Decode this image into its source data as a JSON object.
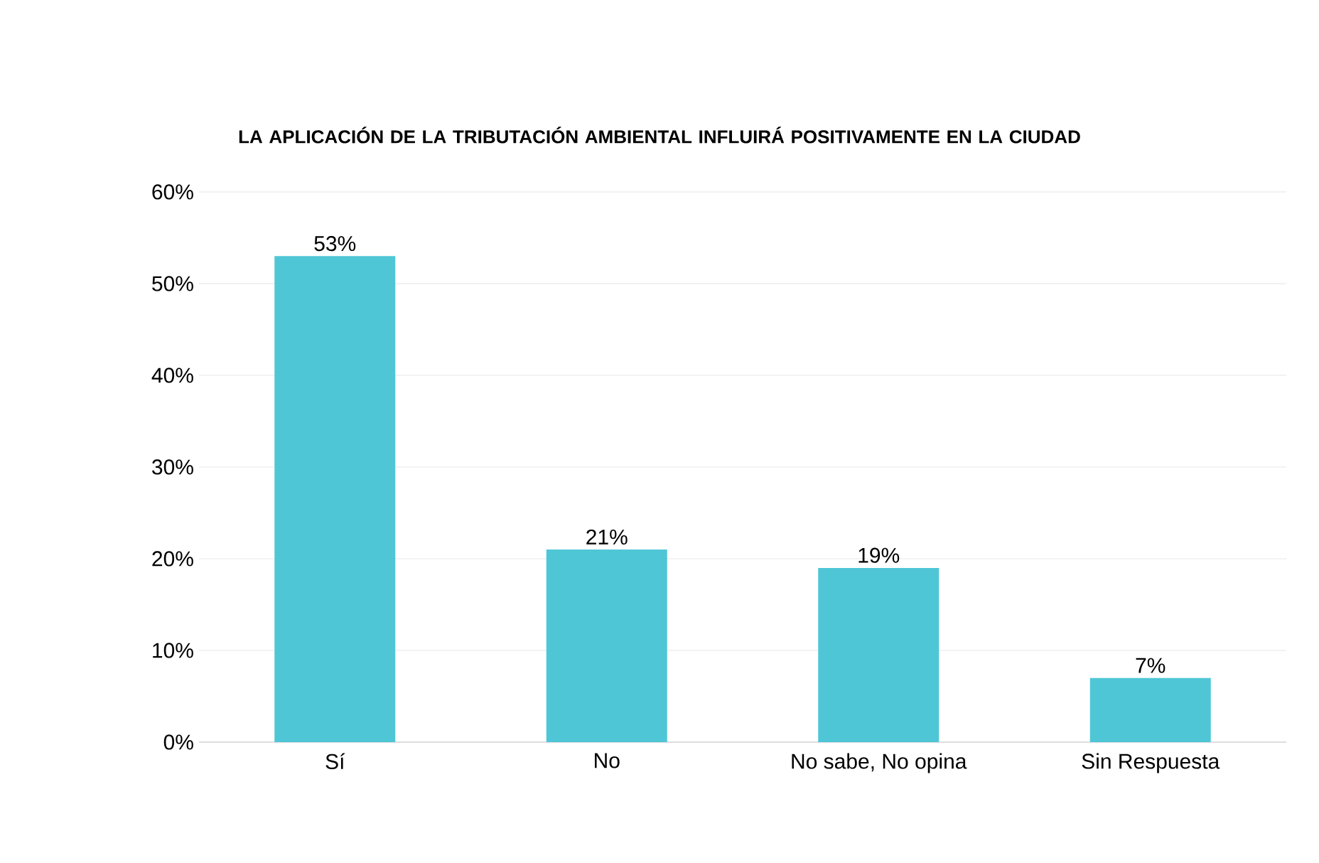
{
  "chart_data": {
    "type": "bar",
    "title": "LA APLICACIÓN DE LA TRIBUTACIÓN AMBIENTAL INFLUIRÁ POSITIVAMENTE EN LA CIUDAD",
    "categories": [
      "Sí",
      "No",
      "No sabe, No opina",
      "Sin Respuesta"
    ],
    "values": [
      53,
      21,
      19,
      7
    ],
    "value_labels": [
      "53%",
      "21%",
      "19%",
      "7%"
    ],
    "color": "#4fc6d6",
    "ylim": [
      0,
      60
    ],
    "yticks": [
      {
        "value": 0,
        "label": "0%"
      },
      {
        "value": 10,
        "label": "10%"
      },
      {
        "value": 20,
        "label": "20%"
      },
      {
        "value": 30,
        "label": "30%"
      },
      {
        "value": 40,
        "label": "40%"
      },
      {
        "value": 50,
        "label": "50%"
      },
      {
        "value": 60,
        "label": "60%"
      }
    ],
    "grid": "y"
  }
}
